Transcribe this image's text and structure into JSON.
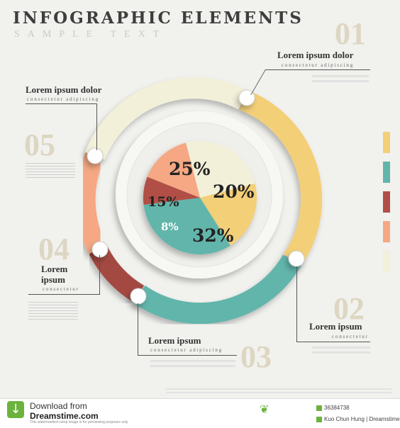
{
  "header": {
    "title": "INFOGRAPHIC ELEMENTS",
    "subtitle": "SAMPLE TEXT"
  },
  "colors": {
    "yellow": "#f3cf78",
    "teal": "#62b5ab",
    "red": "#b14f47",
    "salmon": "#f5a883",
    "cream": "#f3f0d9"
  },
  "callouts": [
    {
      "number": "01",
      "heading": "Lorem ipsum dolor",
      "sub": "consectetur adipiscing"
    },
    {
      "number": "02",
      "heading": "Lorem ipsum",
      "sub": "consectetur"
    },
    {
      "number": "03",
      "heading": "Lorem ipsum",
      "sub": "consectetur adipiscing"
    },
    {
      "number": "04",
      "heading_line1": "Lorem",
      "heading_line2": "ipsum",
      "sub": "consectetur"
    },
    {
      "number": "05",
      "heading": "Lorem ipsum dolor",
      "sub": "consectetur adipiscing"
    }
  ],
  "chart_data": {
    "type": "pie",
    "slices": [
      {
        "label": "25%",
        "value": 25,
        "color": "#f3f0d9"
      },
      {
        "label": "20%",
        "value": 20,
        "color": "#f3cf78"
      },
      {
        "label": "32%",
        "value": 32,
        "color": "#62b5ab"
      },
      {
        "label": "8%",
        "value": 8,
        "color": "#b14f47"
      },
      {
        "label": "15%",
        "value": 15,
        "color": "#f5a883"
      }
    ]
  },
  "footer": {
    "download_from": "Download from",
    "site": "Dreamstime.com",
    "disclaimer": "This watermarked comp image is for previewing purposes only.",
    "image_id": "36384738",
    "author": "Kuo Chun Hung | Dreamstime.com"
  }
}
